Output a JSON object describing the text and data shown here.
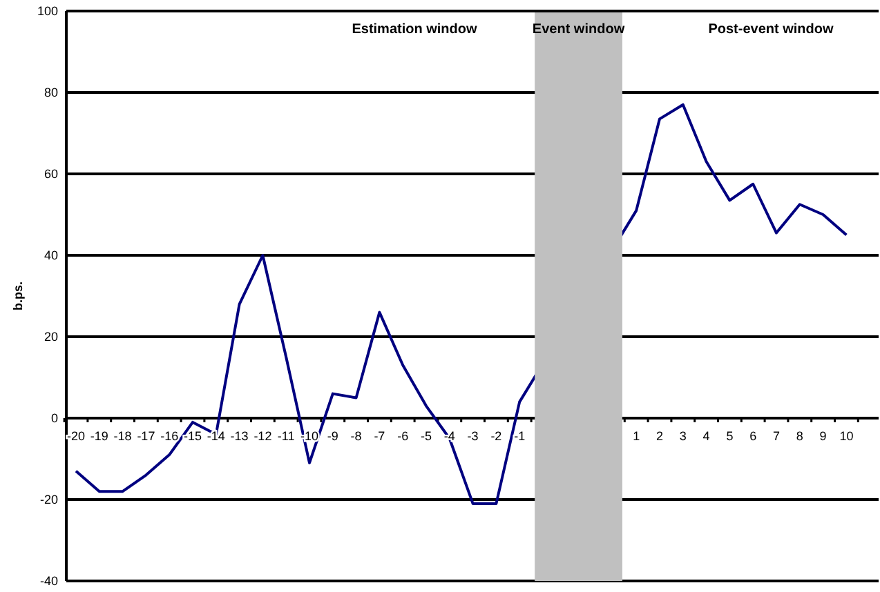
{
  "chart_data": {
    "type": "line",
    "ylabel": "b.ps.",
    "categories": [
      "-20",
      "-19",
      "-18",
      "-17",
      "-16",
      "-15",
      "-14",
      "-13",
      "-12",
      "-11",
      "-10",
      "-9",
      "-8",
      "-7",
      "-6",
      "-5",
      "-4",
      "-3",
      "-2",
      "-1",
      null,
      null,
      null,
      null,
      "1",
      "2",
      "3",
      "4",
      "5",
      "6",
      "7",
      "8",
      "9",
      "10"
    ],
    "series": [
      {
        "color": "#000080",
        "values": [
          -13,
          -18,
          -18,
          -14,
          -9,
          -1,
          -4,
          28,
          40,
          15,
          -11,
          6,
          5,
          26,
          13,
          3,
          -5,
          -21,
          -21,
          4,
          null,
          null,
          null,
          null,
          51,
          73.5,
          77,
          63,
          53.5,
          57.5,
          45.5,
          52.5,
          50,
          45
        ]
      }
    ],
    "ylim": [
      -40,
      100
    ],
    "yticks": [
      -40,
      -20,
      0,
      20,
      40,
      60,
      80,
      100
    ],
    "grid": "y",
    "marker": "none",
    "line_style": "solid",
    "bands": [
      {
        "axis": "x",
        "from": "-1",
        "to": "1",
        "label": "Event window",
        "color": "#c0c0c0"
      }
    ],
    "annotations": [
      "Estimation window",
      "Post-event window"
    ]
  }
}
